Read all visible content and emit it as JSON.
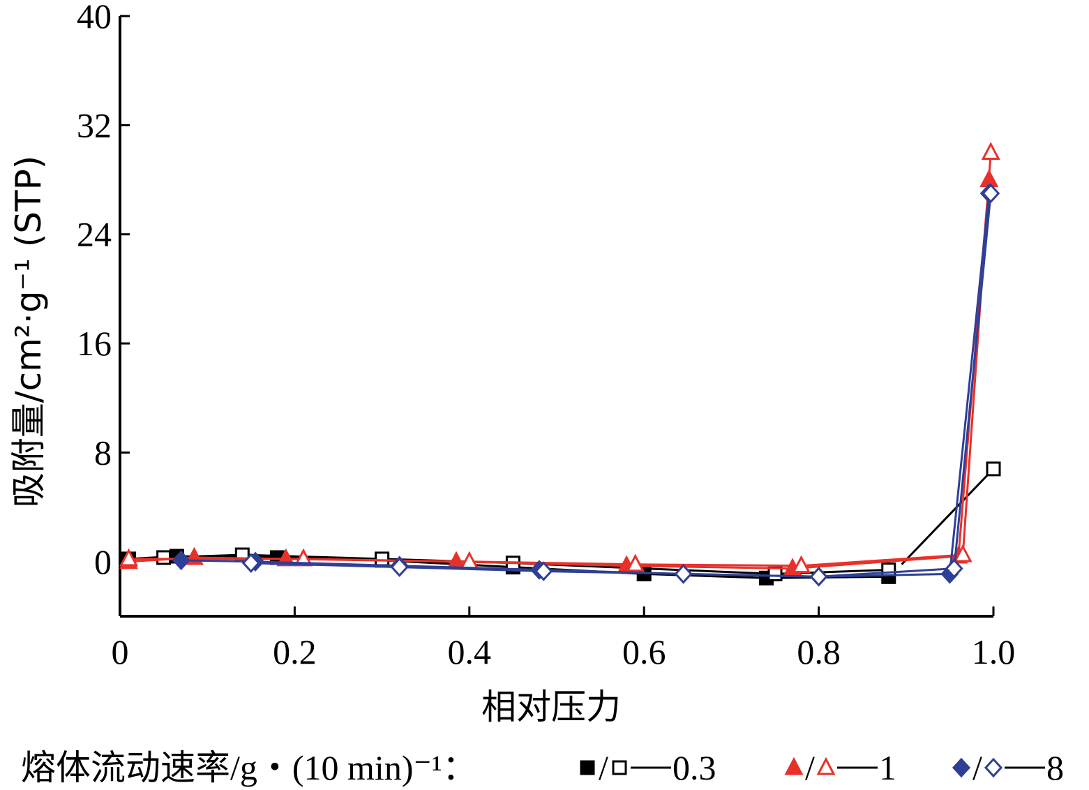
{
  "chart_data": {
    "type": "line",
    "xlabel": "相对压力",
    "ylabel": "吸附量/cm²·g⁻¹ (STP)",
    "xlim": [
      0,
      1.0
    ],
    "ylim": [
      -4,
      40
    ],
    "xticks": [
      "0",
      "0.2",
      "0.4",
      "0.6",
      "0.8",
      "1.0"
    ],
    "yticks": [
      "0",
      "8",
      "16",
      "24",
      "32",
      "40"
    ],
    "grid": false,
    "legend": {
      "position": "bottom",
      "prefix": "熔体流动速率/g・(10 min)⁻¹：",
      "entries": [
        {
          "symbols": "■/□",
          "value": "0.3"
        },
        {
          "symbols": "▲/△",
          "value": "1"
        },
        {
          "symbols": "◆/◇",
          "value": "8"
        }
      ]
    },
    "series": [
      {
        "group": "0.3",
        "branch": "adsorption",
        "marker": "square-filled",
        "color": "#000000",
        "x": [
          0.01,
          0.065,
          0.18,
          0.3,
          0.45,
          0.6,
          0.74,
          0.88
        ],
        "y": [
          0.2,
          0.4,
          0.3,
          0.1,
          -0.4,
          -0.9,
          -1.2,
          -1.1
        ]
      },
      {
        "group": "0.3",
        "branch": "desorption",
        "marker": "square-open",
        "color": "#000000",
        "x": [
          0.88,
          0.75,
          0.45,
          0.3,
          0.14,
          0.05
        ],
        "y": [
          -0.6,
          -0.9,
          -0.1,
          0.2,
          0.5,
          0.3
        ]
      },
      {
        "group": "0.3",
        "branch": "top",
        "marker": "square-open",
        "color": "#000000",
        "x": [
          0.895,
          1.0
        ],
        "y": [
          -0.2,
          6.8
        ]
      },
      {
        "group": "1",
        "branch": "adsorption",
        "marker": "triangle-filled",
        "color": "#e8312a",
        "x": [
          0.01,
          0.085,
          0.19,
          0.385,
          0.58,
          0.77,
          0.96,
          0.995
        ],
        "y": [
          0.0,
          0.3,
          0.2,
          0.0,
          -0.3,
          -0.5,
          0.4,
          28.0
        ]
      },
      {
        "group": "1",
        "branch": "desorption",
        "marker": "triangle-open",
        "color": "#e8312a",
        "x": [
          0.997,
          0.965,
          0.78,
          0.59,
          0.4,
          0.21,
          0.01
        ],
        "y": [
          30.0,
          0.5,
          -0.3,
          -0.2,
          0.0,
          0.2,
          0.2
        ]
      },
      {
        "group": "8",
        "branch": "adsorption",
        "marker": "diamond-filled",
        "color": "#2e3f96",
        "x": [
          0.07,
          0.155,
          0.32,
          0.48,
          0.645,
          0.8,
          0.95,
          0.995
        ],
        "y": [
          0.1,
          0.0,
          -0.3,
          -0.6,
          -0.9,
          -1.1,
          -0.9,
          27.0
        ]
      },
      {
        "group": "8",
        "branch": "desorption",
        "marker": "diamond-open",
        "color": "#2e3f96",
        "x": [
          0.997,
          0.955,
          0.8,
          0.645,
          0.485,
          0.32,
          0.15
        ],
        "y": [
          27.0,
          -0.5,
          -1.1,
          -0.9,
          -0.7,
          -0.4,
          -0.1
        ]
      }
    ]
  },
  "colors": {
    "black": "#000000",
    "red": "#e8312a",
    "blue": "#2e3f96",
    "olive": "#8a8a3a"
  }
}
